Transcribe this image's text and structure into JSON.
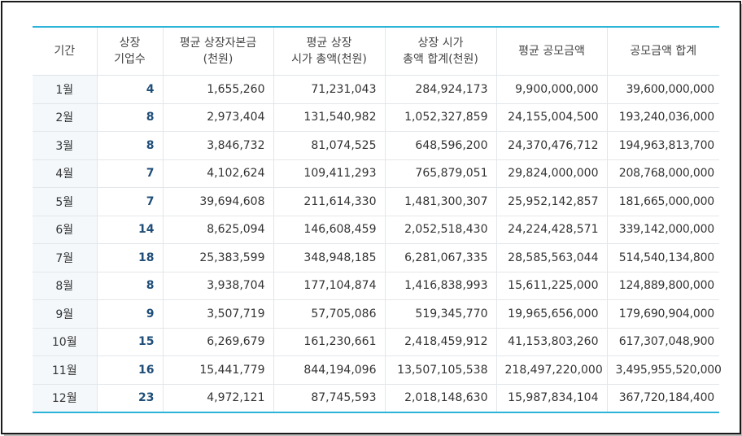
{
  "table": {
    "headers": [
      "기간",
      "상장\n기업수",
      "평균 상장자본금\n(천원)",
      "평균 상장\n시가 총액(천원)",
      "상장 시가\n총액 합계(천원)",
      "평균 공모금액",
      "공모금액 합계"
    ],
    "rows": [
      {
        "period": "1월",
        "count": "4",
        "avg_capital": "1,655,260",
        "avg_market_cap": "71,231,043",
        "total_market_cap": "284,924,173",
        "avg_offering": "9,900,000,000",
        "total_offering": "39,600,000,000"
      },
      {
        "period": "2월",
        "count": "8",
        "avg_capital": "2,973,404",
        "avg_market_cap": "131,540,982",
        "total_market_cap": "1,052,327,859",
        "avg_offering": "24,155,004,500",
        "total_offering": "193,240,036,000"
      },
      {
        "period": "3월",
        "count": "8",
        "avg_capital": "3,846,732",
        "avg_market_cap": "81,074,525",
        "total_market_cap": "648,596,200",
        "avg_offering": "24,370,476,712",
        "total_offering": "194,963,813,700"
      },
      {
        "period": "4월",
        "count": "7",
        "avg_capital": "4,102,624",
        "avg_market_cap": "109,411,293",
        "total_market_cap": "765,879,051",
        "avg_offering": "29,824,000,000",
        "total_offering": "208,768,000,000"
      },
      {
        "period": "5월",
        "count": "7",
        "avg_capital": "39,694,608",
        "avg_market_cap": "211,614,330",
        "total_market_cap": "1,481,300,307",
        "avg_offering": "25,952,142,857",
        "total_offering": "181,665,000,000"
      },
      {
        "period": "6월",
        "count": "14",
        "avg_capital": "8,625,094",
        "avg_market_cap": "146,608,459",
        "total_market_cap": "2,052,518,430",
        "avg_offering": "24,224,428,571",
        "total_offering": "339,142,000,000"
      },
      {
        "period": "7월",
        "count": "18",
        "avg_capital": "25,383,599",
        "avg_market_cap": "348,948,185",
        "total_market_cap": "6,281,067,335",
        "avg_offering": "28,585,563,044",
        "total_offering": "514,540,134,800"
      },
      {
        "period": "8월",
        "count": "8",
        "avg_capital": "3,938,704",
        "avg_market_cap": "177,104,874",
        "total_market_cap": "1,416,838,993",
        "avg_offering": "15,611,225,000",
        "total_offering": "124,889,800,000"
      },
      {
        "period": "9월",
        "count": "9",
        "avg_capital": "3,507,719",
        "avg_market_cap": "57,705,086",
        "total_market_cap": "519,345,770",
        "avg_offering": "19,965,656,000",
        "total_offering": "179,690,904,000"
      },
      {
        "period": "10월",
        "count": "15",
        "avg_capital": "6,269,679",
        "avg_market_cap": "161,230,661",
        "total_market_cap": "2,418,459,912",
        "avg_offering": "41,153,803,260",
        "total_offering": "617,307,048,900"
      },
      {
        "period": "11월",
        "count": "16",
        "avg_capital": "15,441,779",
        "avg_market_cap": "844,194,096",
        "total_market_cap": "13,507,105,538",
        "avg_offering": "218,497,220,000",
        "total_offering": "3,495,955,520,000"
      },
      {
        "period": "12월",
        "count": "23",
        "avg_capital": "4,972,121",
        "avg_market_cap": "87,745,593",
        "total_market_cap": "2,018,148,630",
        "avg_offering": "15,987,834,104",
        "total_offering": "367,720,184,400"
      }
    ]
  },
  "colors": {
    "accent_border": "#2bb3d8",
    "count_text": "#1f4e79",
    "period_bg": "#f4f8fb"
  }
}
